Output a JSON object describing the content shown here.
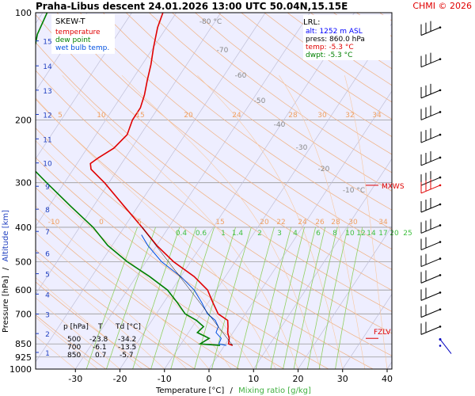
{
  "header": {
    "title": "Praha-Libus   descent   24.01.2026 13:00 UTC   50.04N,15.15E",
    "copyright": "CHMI © 2026"
  },
  "legend": {
    "title": "SKEW-T",
    "items": [
      {
        "label": "temperature",
        "color": "#e00000"
      },
      {
        "label": "dew point",
        "color": "#008000"
      },
      {
        "label": "wet bulb temp.",
        "color": "#0050e0"
      }
    ]
  },
  "lrl_box": {
    "title": "LRL:",
    "alt": "alt: 1252 m ASL",
    "press": "press: 860.0 hPa",
    "temp": "temp: -5.3 °C",
    "dwpt": "dwpt: -5.3 °C"
  },
  "table": {
    "headers": [
      "p [hPa]",
      "T",
      "Td [°C]"
    ],
    "rows": [
      [
        "500",
        "-23.8",
        "-34.2"
      ],
      [
        "700",
        "-6.1",
        "-13.5"
      ],
      [
        "850",
        "0.7",
        "-5.7"
      ]
    ]
  },
  "annotations": {
    "mxws": "MXWS",
    "fzlv": "FZLV"
  },
  "axes": {
    "xlabel_temp": "Temperature [°C]",
    "xlabel_sep": "/",
    "xlabel_mix": "Mixing ratio [g/kg]",
    "ylabel_pres": "Pressure [hPa]",
    "ylabel_sep": "/",
    "ylabel_alt": "Altitude [km]"
  },
  "colors": {
    "temperature": "#e00000",
    "dewpoint": "#008000",
    "wetbulb": "#0050e0",
    "isotherm": "#f0b080",
    "mixing": "#90d060",
    "background": "#eeeeff",
    "isobar": "#999999",
    "wind": "#000000",
    "wind_highlight": "#e00000",
    "wind_blue": "#0000c0"
  },
  "chart_data": {
    "type": "line",
    "title": "SKEW-T",
    "xlabel": "Temperature [°C]",
    "ylabel": "Pressure [hPa]",
    "xlim": [
      -35,
      45
    ],
    "ylim": [
      1000,
      100
    ],
    "yscale": "log",
    "x_ticks": [
      -30,
      -20,
      -10,
      0,
      10,
      20,
      30,
      40
    ],
    "pressure_ticks": [
      100,
      200,
      300,
      400,
      500,
      600,
      700,
      850,
      925,
      1000
    ],
    "altitude_ticks": [
      {
        "km": 1,
        "p": 898
      },
      {
        "km": 2,
        "p": 795
      },
      {
        "km": 3,
        "p": 701
      },
      {
        "km": 4,
        "p": 616
      },
      {
        "km": 5,
        "p": 540
      },
      {
        "km": 6,
        "p": 472
      },
      {
        "km": 7,
        "p": 411
      },
      {
        "km": 8,
        "p": 356
      },
      {
        "km": 9,
        "p": 307
      },
      {
        "km": 10,
        "p": 264
      },
      {
        "km": 11,
        "p": 226
      },
      {
        "km": 12,
        "p": 193
      },
      {
        "km": 13,
        "p": 165
      },
      {
        "km": 14,
        "p": 141
      },
      {
        "km": 15,
        "p": 120
      }
    ],
    "isotherm_labels": [
      {
        "t": -10,
        "p": 390
      },
      {
        "t": 0,
        "p": 390
      },
      {
        "t": 5,
        "p": 390
      },
      {
        "t": 10,
        "p": 200
      },
      {
        "t": 15,
        "p": 200
      },
      {
        "t": 20,
        "p": 200
      },
      {
        "t": 25,
        "p": 200
      },
      {
        "t": 30,
        "p": 200
      },
      {
        "t": 35,
        "p": 200
      },
      {
        "t": 40,
        "p": 200
      },
      {
        "t": 45,
        "p": 200
      }
    ],
    "theta_labels": [
      {
        "text": "-80 °C",
        "p": 108
      },
      {
        "text": "-70",
        "p": 125
      },
      {
        "text": "-60",
        "p": 145
      },
      {
        "text": "-50",
        "p": 170
      },
      {
        "text": "-40",
        "p": 205
      },
      {
        "text": "-30",
        "p": 240
      },
      {
        "text": "-20",
        "p": 275
      },
      {
        "text": "-10 °C",
        "p": 315
      }
    ],
    "mixing_ratio_labels": [
      "0.4",
      "0.6",
      "1",
      "1.4",
      "2",
      "3",
      "4",
      "6",
      "8",
      "10",
      "12",
      "14",
      "17",
      "20",
      "25"
    ],
    "mixing_ratio_top_labels": [
      "15",
      "20",
      "22",
      "24",
      "26",
      "28",
      "30",
      "32",
      "34"
    ],
    "series": [
      {
        "name": "temperature",
        "points": [
          {
            "p": 858,
            "t": 1.8
          },
          {
            "p": 850,
            "t": 0.7
          },
          {
            "p": 820,
            "t": 0.0
          },
          {
            "p": 790,
            "t": -1.2
          },
          {
            "p": 760,
            "t": -2.0
          },
          {
            "p": 730,
            "t": -3.0
          },
          {
            "p": 700,
            "t": -6.1
          },
          {
            "p": 650,
            "t": -9.0
          },
          {
            "p": 600,
            "t": -12.0
          },
          {
            "p": 550,
            "t": -17.0
          },
          {
            "p": 500,
            "t": -23.8
          },
          {
            "p": 450,
            "t": -30.0
          },
          {
            "p": 400,
            "t": -36.0
          },
          {
            "p": 350,
            "t": -43.0
          },
          {
            "p": 300,
            "t": -51.0
          },
          {
            "p": 275,
            "t": -56.0
          },
          {
            "p": 265,
            "t": -57.0
          },
          {
            "p": 255,
            "t": -56.0
          },
          {
            "p": 240,
            "t": -54.0
          },
          {
            "p": 220,
            "t": -53.0
          },
          {
            "p": 200,
            "t": -54.0
          },
          {
            "p": 185,
            "t": -54.0
          },
          {
            "p": 170,
            "t": -55.0
          },
          {
            "p": 155,
            "t": -56.5
          },
          {
            "p": 140,
            "t": -58.0
          },
          {
            "p": 125,
            "t": -60.0
          },
          {
            "p": 110,
            "t": -62.0
          },
          {
            "p": 100,
            "t": -63.0
          }
        ]
      },
      {
        "name": "dew point",
        "points": [
          {
            "p": 858,
            "t": -1.0
          },
          {
            "p": 850,
            "t": -5.7
          },
          {
            "p": 820,
            "t": -4.5
          },
          {
            "p": 790,
            "t": -8.0
          },
          {
            "p": 760,
            "t": -7.5
          },
          {
            "p": 730,
            "t": -10.0
          },
          {
            "p": 700,
            "t": -13.5
          },
          {
            "p": 650,
            "t": -17.0
          },
          {
            "p": 600,
            "t": -21.0
          },
          {
            "p": 550,
            "t": -27.0
          },
          {
            "p": 500,
            "t": -34.2
          },
          {
            "p": 450,
            "t": -41.0
          },
          {
            "p": 400,
            "t": -47.0
          },
          {
            "p": 350,
            "t": -55.0
          },
          {
            "p": 300,
            "t": -64.0
          },
          {
            "p": 270,
            "t": -70.0
          },
          {
            "p": 240,
            "t": -72.0
          },
          {
            "p": 210,
            "t": -76.0
          },
          {
            "p": 190,
            "t": -80.0
          },
          {
            "p": 170,
            "t": -83.0
          },
          {
            "p": 150,
            "t": -85.0
          },
          {
            "p": 130,
            "t": -86.0
          },
          {
            "p": 115,
            "t": -88.0
          },
          {
            "p": 100,
            "t": -89.0
          }
        ]
      },
      {
        "name": "wet bulb temp.",
        "points": [
          {
            "p": 858,
            "t": 0.4
          },
          {
            "p": 850,
            "t": -1.5
          },
          {
            "p": 820,
            "t": -1.8
          },
          {
            "p": 790,
            "t": -3.8
          },
          {
            "p": 760,
            "t": -4.2
          },
          {
            "p": 730,
            "t": -5.8
          },
          {
            "p": 700,
            "t": -8.5
          },
          {
            "p": 650,
            "t": -11.5
          },
          {
            "p": 600,
            "t": -15.0
          },
          {
            "p": 550,
            "t": -20.0
          },
          {
            "p": 500,
            "t": -26.5
          },
          {
            "p": 450,
            "t": -32.0
          },
          {
            "p": 420,
            "t": -35.0
          }
        ]
      }
    ],
    "markers": [
      {
        "name": "MXWS",
        "p": 305
      },
      {
        "name": "FZLV",
        "p": 820
      }
    ],
    "wind_barbs": [
      {
        "p": 110
      },
      {
        "p": 135
      },
      {
        "p": 165
      },
      {
        "p": 190
      },
      {
        "p": 220
      },
      {
        "p": 255
      },
      {
        "p": 290
      },
      {
        "p": 305,
        "highlight": true
      },
      {
        "p": 345
      },
      {
        "p": 395
      },
      {
        "p": 440
      },
      {
        "p": 490
      },
      {
        "p": 545
      },
      {
        "p": 610
      },
      {
        "p": 680
      },
      {
        "p": 760
      },
      {
        "p": 860,
        "calm": true
      }
    ]
  }
}
